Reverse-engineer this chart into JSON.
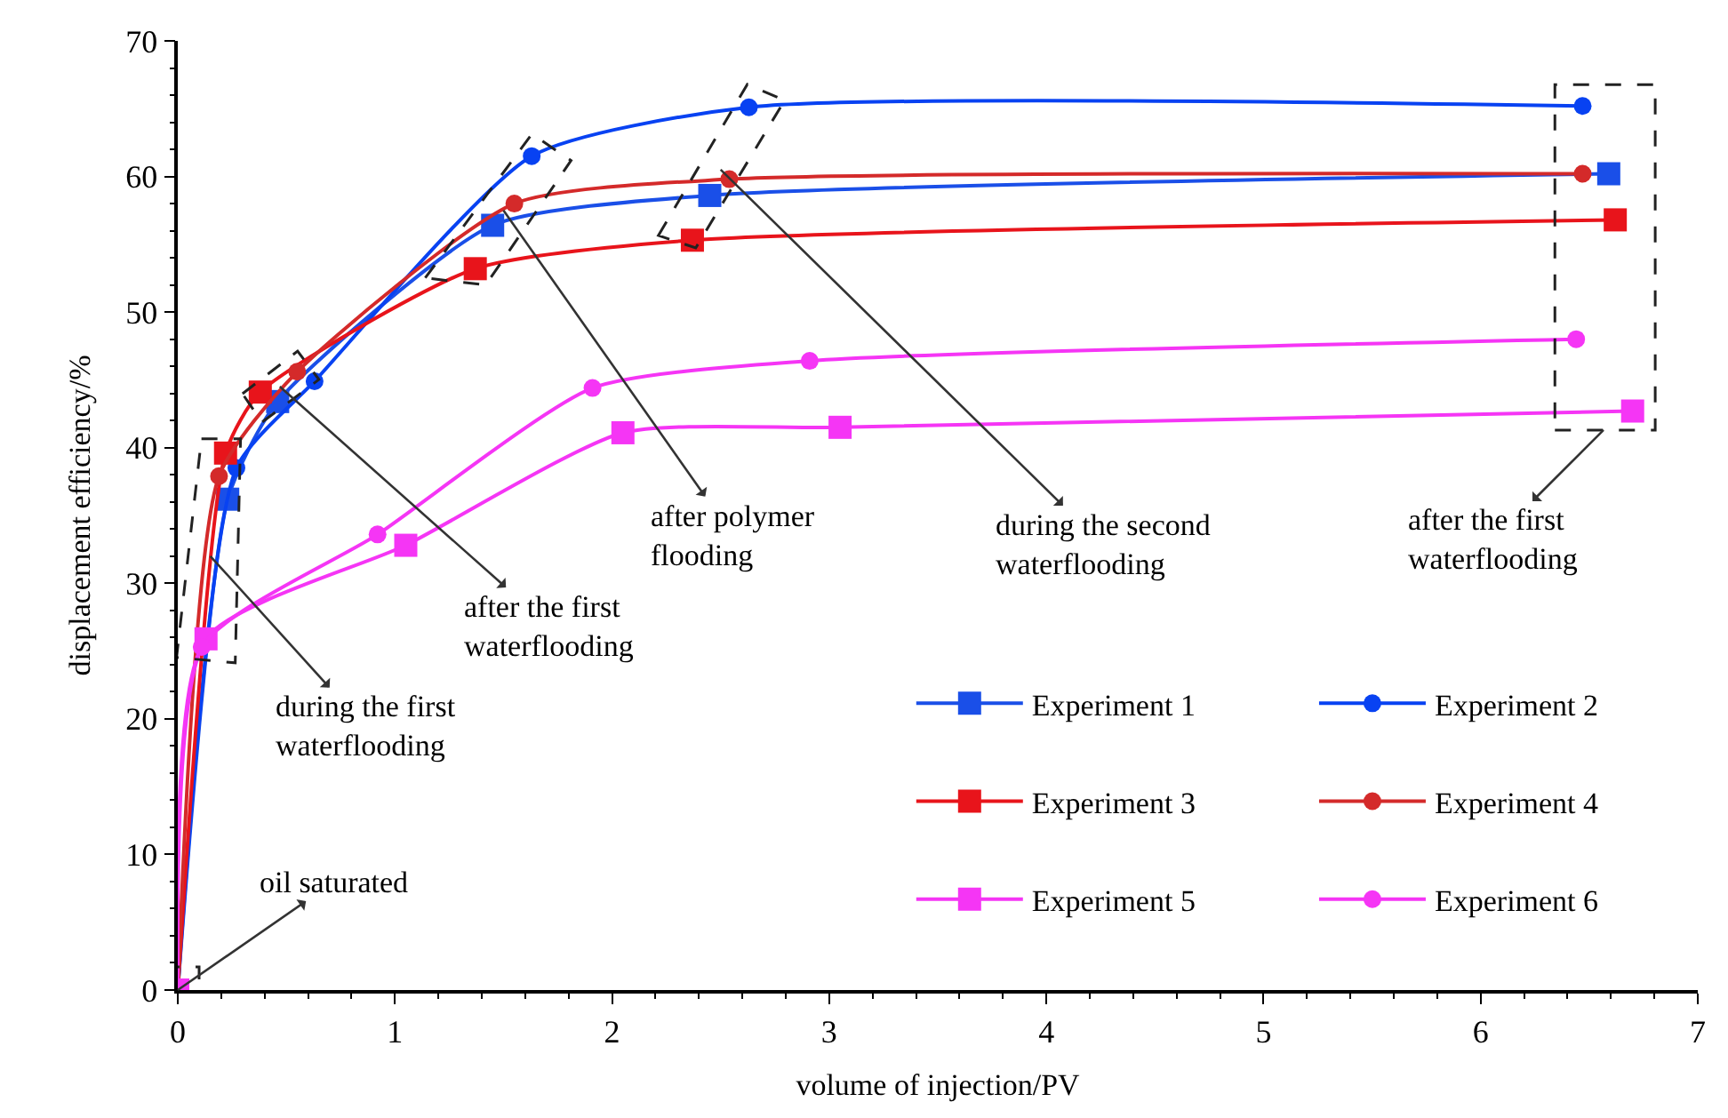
{
  "chart_data": {
    "type": "line",
    "xlabel": "volume of injection/PV",
    "ylabel": "displacement efficiency/%",
    "xlim": [
      0,
      7
    ],
    "xticks": [
      0,
      1,
      2,
      3,
      4,
      5,
      6,
      7
    ],
    "ylim": [
      0,
      70
    ],
    "yticks": [
      0,
      10,
      20,
      30,
      40,
      50,
      60,
      70
    ],
    "legend": "bottom right",
    "line_style": "solid",
    "series": [
      {
        "name": "Experiment 1",
        "color": "#1a4fe8",
        "marker": "square",
        "x": [
          0,
          0.23,
          0.46,
          1.45,
          2.45,
          6.59
        ],
        "values": [
          0,
          36.2,
          43.4,
          56.4,
          58.6,
          60.2
        ]
      },
      {
        "name": "Experiment 2",
        "color": "#0842f2",
        "marker": "circle",
        "x": [
          0,
          0.27,
          0.63,
          1.63,
          2.63,
          6.47
        ],
        "values": [
          0,
          38.5,
          44.9,
          61.5,
          65.1,
          65.2
        ]
      },
      {
        "name": "Experiment 3",
        "color": "#e8141b",
        "marker": "square",
        "x": [
          0,
          0.22,
          0.38,
          1.37,
          2.37,
          6.62
        ],
        "values": [
          0,
          39.6,
          44.1,
          53.2,
          55.3,
          56.8
        ]
      },
      {
        "name": "Experiment 4",
        "color": "#d42a2a",
        "marker": "circle",
        "x": [
          0,
          0.19,
          0.55,
          1.55,
          2.54,
          6.47
        ],
        "values": [
          0,
          37.9,
          45.6,
          58.0,
          59.8,
          60.2
        ]
      },
      {
        "name": "Experiment 5",
        "color": "#f535f5",
        "marker": "square",
        "x": [
          0,
          0.13,
          1.05,
          2.05,
          3.05,
          6.7
        ],
        "values": [
          0,
          25.9,
          32.8,
          41.1,
          41.5,
          42.7
        ]
      },
      {
        "name": "Experiment 6",
        "color": "#f535f5",
        "marker": "circle",
        "x": [
          0,
          0.11,
          0.92,
          1.91,
          2.91,
          6.44
        ],
        "values": [
          0,
          25.3,
          33.6,
          44.4,
          46.4,
          48.0
        ]
      }
    ],
    "annotations": [
      {
        "text": "oil saturated",
        "x": 0,
        "y": 0
      },
      {
        "text": "during the first\nwaterflooding",
        "x": 0.15,
        "y": 32
      },
      {
        "text": "after the first\nwaterflooding",
        "x": 0.47,
        "y": 44.5
      },
      {
        "text": "after polymer\nflooding",
        "x": 1.5,
        "y": 57.5
      },
      {
        "text": "during the second\nwaterflooding",
        "x": 2.5,
        "y": 60.5
      },
      "after the first\nwaterflooding"
    ]
  }
}
